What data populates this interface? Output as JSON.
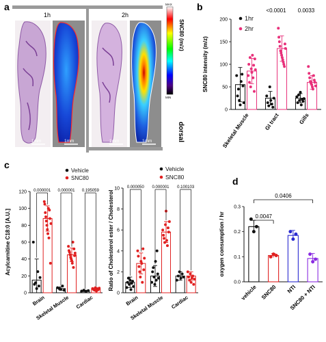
{
  "panels": {
    "a": {
      "letter": "a",
      "time_labels": [
        "1h",
        "2h"
      ],
      "scale_bar_label": "1mm",
      "orientation_label": "dorsal",
      "colorbar": {
        "max_label": "MAX",
        "min_label": "MIN",
        "title": "SNC80 (m/z)",
        "colors": [
          "#ffffff",
          "#ff0000",
          "#ffff00",
          "#00ff00",
          "#00ffff",
          "#0000ff",
          "#4b0082",
          "#000000"
        ]
      }
    },
    "b": {
      "letter": "b"
    },
    "c": {
      "letter": "c"
    },
    "d": {
      "letter": "d"
    }
  },
  "chart_data": [
    {
      "id": "b",
      "type": "bar",
      "ylabel": "SNC80 intensity (m/z)",
      "ylim": [
        0,
        200
      ],
      "yticks": [
        0,
        50,
        100,
        150,
        200
      ],
      "categories": [
        "Skeletal Muscle",
        "GI tract",
        "Gills"
      ],
      "legend": {
        "position": "top-right",
        "entries": [
          "1hr",
          "2hr"
        ]
      },
      "series": [
        {
          "name": "1hr",
          "color": "#111111",
          "values": [
            55,
            25,
            25
          ],
          "errors": [
            38,
            15,
            10
          ],
          "points": [
            [
              75,
              30,
              45,
              20,
              10,
              62,
              78,
              52,
              15
            ],
            [
              30,
              15,
              8,
              50,
              20,
              12,
              5,
              25
            ],
            [
              28,
              15,
              32,
              20,
              38,
              10,
              22,
              18,
              24
            ]
          ]
        },
        {
          "name": "2hr",
          "color": "#e8307a",
          "values": [
            85,
            135,
            60
          ],
          "errors": [
            28,
            28,
            15
          ],
          "points": [
            [
              75,
              100,
              60,
              115,
              50,
              90,
              82,
              120,
              70,
              98,
              40,
              112,
              88
            ],
            [
              180,
              160,
              150,
              140,
              130,
              125,
              120,
              115,
              110,
              105,
              100,
              95,
              145,
              135
            ],
            [
              95,
              80,
              70,
              62,
              58,
              55,
              50,
              45,
              75,
              65,
              60,
              52
            ]
          ]
        }
      ],
      "annotations": [
        {
          "category": "GI tract",
          "text": "<0.0001"
        },
        {
          "category": "Gills",
          "text": "0.0033"
        }
      ]
    },
    {
      "id": "c-left",
      "type": "bar",
      "ylabel": "Acylcarnitine C18:0 [A.U.]",
      "ylim": [
        0,
        120
      ],
      "yticks": [
        0,
        20,
        40,
        60,
        80,
        100,
        120
      ],
      "categories": [
        "Brain",
        "Skeletal Muscle",
        "Cardiac"
      ],
      "legend": {
        "position": "top-right",
        "entries": [
          "Vehicle",
          "SNC80"
        ]
      },
      "series": [
        {
          "name": "Vehicle",
          "color": "#111111",
          "values": [
            15,
            5,
            2
          ],
          "errors": [
            25,
            2,
            1
          ],
          "points": [
            [
              60,
              10,
              12,
              5,
              25,
              8,
              18
            ],
            [
              6,
              5,
              4,
              8,
              3
            ],
            [
              2,
              3,
              1.5,
              2.5
            ]
          ]
        },
        {
          "name": "SNC80",
          "color": "#e02020",
          "values": [
            88,
            45,
            4
          ],
          "errors": [
            15,
            8,
            2
          ],
          "points": [
            [
              108,
              105,
              95,
              90,
              85,
              80,
              75,
              70,
              100,
              65,
              98,
              88,
              35,
              82
            ],
            [
              55,
              50,
              48,
              45,
              42,
              40,
              38,
              35,
              60,
              30,
              52,
              44,
              47
            ],
            [
              5,
              4,
              3,
              6,
              2,
              4.5,
              3.5,
              5.5
            ]
          ]
        }
      ],
      "annotations": [
        {
          "category": "Brain",
          "text": "0.000001"
        },
        {
          "category": "Skeletal Muscle",
          "text": "0.000001"
        },
        {
          "category": "Cardiac",
          "text": "0.195059"
        }
      ]
    },
    {
      "id": "c-right",
      "type": "bar",
      "ylabel": "Ratio of Cholesterol ester / Cholesterol",
      "ylim": [
        0,
        10
      ],
      "yticks": [
        0,
        2,
        4,
        6,
        8,
        10
      ],
      "categories": [
        "Brain",
        "Skeletal Muscle",
        "Cardiac"
      ],
      "legend": {
        "position": "top-right",
        "entries": [
          "Vehicle",
          "SNC80"
        ]
      },
      "series": [
        {
          "name": "Vehicle",
          "color": "#111111",
          "values": [
            1.0,
            1.6,
            1.6
          ],
          "errors": [
            0.5,
            1.0,
            0.4
          ],
          "points": [
            [
              0.5,
              1.0,
              1.4,
              0.8,
              1.2,
              0.3,
              0.9,
              1.1,
              0.6
            ],
            [
              1.0,
              2.0,
              2.4,
              1.5,
              0.8,
              3.0,
              1.2,
              4.0,
              1.8,
              1.4
            ],
            [
              1.2,
              1.6,
              2.0,
              1.4,
              1.8,
              1.5
            ]
          ]
        },
        {
          "name": "SNC80",
          "color": "#e02020",
          "values": [
            2.8,
            5.8,
            1.6
          ],
          "errors": [
            1.0,
            1.0,
            0.4
          ],
          "points": [
            [
              4.0,
              3.5,
              2.5,
              2.0,
              1.5,
              3.0,
              2.8,
              1.0,
              4.2,
              2.2,
              3.3
            ],
            [
              6.0,
              5.5,
              5.2,
              4.8,
              6.5,
              7.8,
              5.0,
              4.5,
              6.2,
              5.8,
              6.8
            ],
            [
              2.0,
              1.5,
              1.2,
              1.8,
              1.0,
              1.4,
              1.6,
              0.8,
              1.3
            ]
          ]
        }
      ],
      "annotations": [
        {
          "category": "Brain",
          "text": "0.000050"
        },
        {
          "category": "Skeletal Muscle",
          "text": "0.000001"
        },
        {
          "category": "Cardiac",
          "text": "0.100103"
        }
      ]
    },
    {
      "id": "d",
      "type": "bar",
      "ylabel": "oxygen consumption / hr",
      "ylim": [
        0,
        0.3
      ],
      "yticks": [
        0.0,
        0.1,
        0.2,
        0.3
      ],
      "ytick_labels": [
        "0.0",
        "0.1",
        "0.2",
        "0.3"
      ],
      "categories": [
        "vehicle",
        "SNC80",
        "NTI",
        "SNC80 + NTI"
      ],
      "colors": [
        "#111111",
        "#e02020",
        "#2a2ad0",
        "#8a2be2"
      ],
      "values": [
        0.22,
        0.105,
        0.185,
        0.093
      ],
      "errors": [
        0.025,
        0.008,
        0.02,
        0.02
      ],
      "points": [
        [
          0.25,
          0.2,
          0.22
        ],
        [
          0.1,
          0.11,
          0.105
        ],
        [
          0.2,
          0.17,
          0.19
        ],
        [
          0.11,
          0.08,
          0.09
        ]
      ],
      "annotations": [
        {
          "from": 0,
          "to": 1,
          "text": "0.0047"
        },
        {
          "from": 0,
          "to": 3,
          "text": "0.0406"
        }
      ]
    }
  ]
}
